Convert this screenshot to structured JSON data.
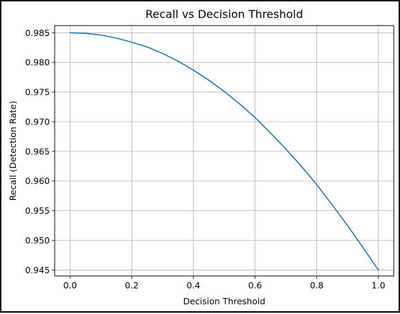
{
  "chart_data": {
    "type": "line",
    "title": "Recall vs Decision Threshold",
    "xlabel": "Decision Threshold",
    "ylabel": "Recall (Detection Rate)",
    "xlim": [
      -0.05,
      1.05
    ],
    "ylim": [
      0.944,
      0.9862
    ],
    "x_ticks": [
      0.0,
      0.2,
      0.4,
      0.6,
      0.8,
      1.0
    ],
    "x_tick_labels": [
      "0.0",
      "0.2",
      "0.4",
      "0.6",
      "0.8",
      "1.0"
    ],
    "y_ticks": [
      0.945,
      0.95,
      0.955,
      0.96,
      0.965,
      0.97,
      0.975,
      0.98,
      0.985
    ],
    "y_tick_labels": [
      "0.945",
      "0.950",
      "0.955",
      "0.960",
      "0.965",
      "0.970",
      "0.975",
      "0.980",
      "0.985"
    ],
    "grid": true,
    "series": [
      {
        "color": "#1f77b4",
        "x": [
          0.0,
          0.05,
          0.1,
          0.15,
          0.2,
          0.25,
          0.3,
          0.35,
          0.4,
          0.45,
          0.5,
          0.55,
          0.6,
          0.65,
          0.7,
          0.75,
          0.8,
          0.85,
          0.9,
          0.95,
          1.0
        ],
        "values": [
          0.985,
          0.9849,
          0.9846,
          0.9841,
          0.9834,
          0.9826,
          0.9815,
          0.9802,
          0.9787,
          0.977,
          0.9751,
          0.973,
          0.9707,
          0.9681,
          0.9654,
          0.9625,
          0.9594,
          0.956,
          0.9525,
          0.9488,
          0.945
        ]
      }
    ]
  }
}
